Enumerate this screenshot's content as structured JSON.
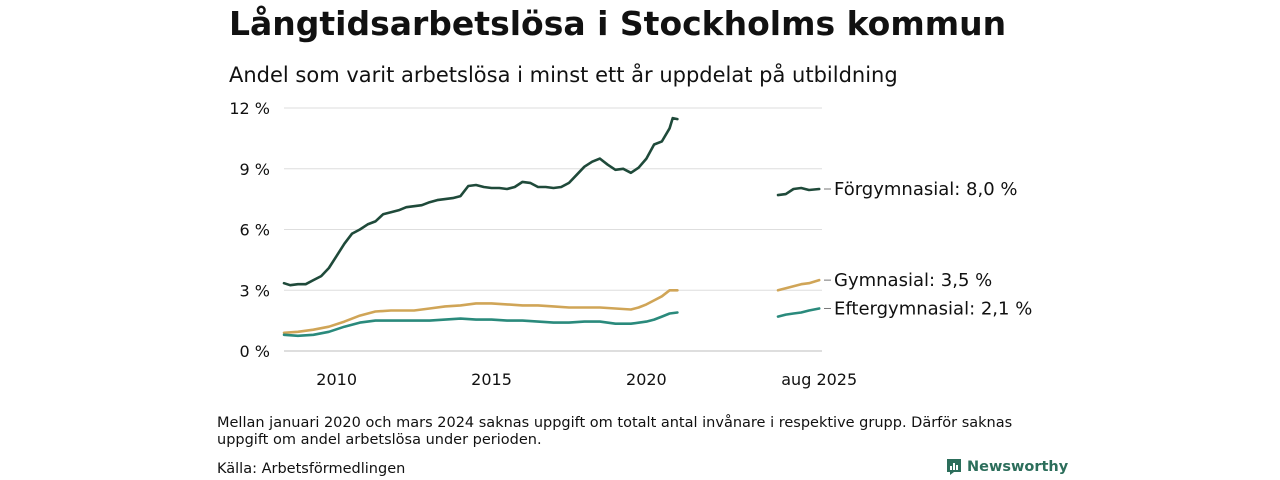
{
  "header": {
    "title": "Långtidsarbetslösa i Stockholms kommun",
    "subtitle": "Andel som varit arbetslösa i minst ett år uppdelat på utbildning"
  },
  "footer": {
    "note": "Mellan januari 2020 och mars 2024 saknas uppgift om totalt antal invånare i respektive grupp. Därför saknas uppgift om andel arbetslösa under perioden.",
    "source": "Källa: Arbetsförmedlingen",
    "brand": "Newsworthy",
    "brand_icon": "bar-chart-logo-icon"
  },
  "chart_data": {
    "type": "line",
    "title": "Långtidsarbetslösa i Stockholms kommun",
    "subtitle": "Andel som varit arbetslösa i minst ett år uppdelat på utbildning",
    "xlabel": "",
    "ylabel": "",
    "y_ticks": [
      "0 %",
      "3 %",
      "6 %",
      "9 %",
      "12 %"
    ],
    "y_tick_values": [
      0,
      3,
      6,
      9,
      12
    ],
    "ylim": [
      0,
      12
    ],
    "xlim": [
      2008.3,
      2025.67
    ],
    "x_ticks": [
      {
        "value": 2010,
        "label": "2010"
      },
      {
        "value": 2015,
        "label": "2015"
      },
      {
        "value": 2020,
        "label": "2020"
      },
      {
        "value": 2025.58,
        "label": "aug 2025"
      }
    ],
    "grid": true,
    "legend": "end-of-line labels",
    "series": [
      {
        "name": "Förgymnasial",
        "end_label": "Förgymnasial: 8,0 %",
        "color": "#1f4a3a",
        "segments": [
          [
            [
              2008.3,
              3.35
            ],
            [
              2008.5,
              3.25
            ],
            [
              2008.75,
              3.3
            ],
            [
              2009.0,
              3.3
            ],
            [
              2009.25,
              3.5
            ],
            [
              2009.5,
              3.7
            ],
            [
              2009.75,
              4.1
            ],
            [
              2010.0,
              4.7
            ],
            [
              2010.25,
              5.3
            ],
            [
              2010.5,
              5.8
            ],
            [
              2010.75,
              6.0
            ],
            [
              2011.0,
              6.25
            ],
            [
              2011.25,
              6.4
            ],
            [
              2011.5,
              6.75
            ],
            [
              2011.75,
              6.85
            ],
            [
              2012.0,
              6.95
            ],
            [
              2012.25,
              7.1
            ],
            [
              2012.5,
              7.15
            ],
            [
              2012.75,
              7.2
            ],
            [
              2013.0,
              7.35
            ],
            [
              2013.25,
              7.45
            ],
            [
              2013.5,
              7.5
            ],
            [
              2013.75,
              7.55
            ],
            [
              2014.0,
              7.65
            ],
            [
              2014.25,
              8.15
            ],
            [
              2014.5,
              8.2
            ],
            [
              2014.75,
              8.1
            ],
            [
              2015.0,
              8.05
            ],
            [
              2015.25,
              8.05
            ],
            [
              2015.5,
              8.0
            ],
            [
              2015.75,
              8.1
            ],
            [
              2016.0,
              8.35
            ],
            [
              2016.25,
              8.3
            ],
            [
              2016.5,
              8.1
            ],
            [
              2016.75,
              8.1
            ],
            [
              2017.0,
              8.05
            ],
            [
              2017.25,
              8.1
            ],
            [
              2017.5,
              8.3
            ],
            [
              2017.75,
              8.7
            ],
            [
              2018.0,
              9.1
            ],
            [
              2018.25,
              9.35
            ],
            [
              2018.5,
              9.5
            ],
            [
              2018.75,
              9.2
            ],
            [
              2019.0,
              8.95
            ],
            [
              2019.25,
              9.0
            ],
            [
              2019.5,
              8.8
            ],
            [
              2019.75,
              9.05
            ],
            [
              2020.0,
              9.5
            ],
            [
              2020.25,
              10.2
            ],
            [
              2020.5,
              10.35
            ],
            [
              2020.75,
              11.0
            ],
            [
              2020.85,
              11.5
            ],
            [
              2021.0,
              11.45
            ]
          ],
          [
            [
              2024.25,
              7.7
            ],
            [
              2024.5,
              7.75
            ],
            [
              2024.75,
              8.0
            ],
            [
              2025.0,
              8.05
            ],
            [
              2025.25,
              7.95
            ],
            [
              2025.58,
              8.0
            ]
          ]
        ]
      },
      {
        "name": "Gymnasial",
        "end_label": "Gymnasial: 3,5 %",
        "color": "#d0a557",
        "segments": [
          [
            [
              2008.3,
              0.9
            ],
            [
              2008.75,
              0.95
            ],
            [
              2009.25,
              1.05
            ],
            [
              2009.75,
              1.2
            ],
            [
              2010.25,
              1.45
            ],
            [
              2010.75,
              1.75
            ],
            [
              2011.25,
              1.95
            ],
            [
              2011.75,
              2.0
            ],
            [
              2012.5,
              2.0
            ],
            [
              2013.0,
              2.1
            ],
            [
              2013.5,
              2.2
            ],
            [
              2014.0,
              2.25
            ],
            [
              2014.5,
              2.35
            ],
            [
              2015.0,
              2.35
            ],
            [
              2015.5,
              2.3
            ],
            [
              2016.0,
              2.25
            ],
            [
              2016.5,
              2.25
            ],
            [
              2017.0,
              2.2
            ],
            [
              2017.5,
              2.15
            ],
            [
              2018.0,
              2.15
            ],
            [
              2018.5,
              2.15
            ],
            [
              2019.0,
              2.1
            ],
            [
              2019.5,
              2.05
            ],
            [
              2019.75,
              2.15
            ],
            [
              2020.0,
              2.3
            ],
            [
              2020.25,
              2.5
            ],
            [
              2020.5,
              2.7
            ],
            [
              2020.75,
              3.0
            ],
            [
              2021.0,
              3.0
            ]
          ],
          [
            [
              2024.25,
              3.0
            ],
            [
              2024.5,
              3.1
            ],
            [
              2024.75,
              3.2
            ],
            [
              2025.0,
              3.3
            ],
            [
              2025.25,
              3.35
            ],
            [
              2025.58,
              3.5
            ]
          ]
        ]
      },
      {
        "name": "Eftergymnasial",
        "end_label": "Eftergymnasial: 2,1 %",
        "color": "#2a8a7c",
        "segments": [
          [
            [
              2008.3,
              0.8
            ],
            [
              2008.75,
              0.75
            ],
            [
              2009.25,
              0.8
            ],
            [
              2009.75,
              0.95
            ],
            [
              2010.25,
              1.2
            ],
            [
              2010.75,
              1.4
            ],
            [
              2011.25,
              1.5
            ],
            [
              2011.75,
              1.5
            ],
            [
              2012.5,
              1.5
            ],
            [
              2013.0,
              1.5
            ],
            [
              2013.5,
              1.55
            ],
            [
              2014.0,
              1.6
            ],
            [
              2014.5,
              1.55
            ],
            [
              2015.0,
              1.55
            ],
            [
              2015.5,
              1.5
            ],
            [
              2016.0,
              1.5
            ],
            [
              2016.5,
              1.45
            ],
            [
              2017.0,
              1.4
            ],
            [
              2017.5,
              1.4
            ],
            [
              2018.0,
              1.45
            ],
            [
              2018.5,
              1.45
            ],
            [
              2019.0,
              1.35
            ],
            [
              2019.5,
              1.35
            ],
            [
              2020.0,
              1.45
            ],
            [
              2020.25,
              1.55
            ],
            [
              2020.5,
              1.7
            ],
            [
              2020.75,
              1.85
            ],
            [
              2021.0,
              1.9
            ]
          ],
          [
            [
              2024.25,
              1.7
            ],
            [
              2024.5,
              1.8
            ],
            [
              2024.75,
              1.85
            ],
            [
              2025.0,
              1.9
            ],
            [
              2025.25,
              2.0
            ],
            [
              2025.58,
              2.1
            ]
          ]
        ]
      }
    ]
  }
}
